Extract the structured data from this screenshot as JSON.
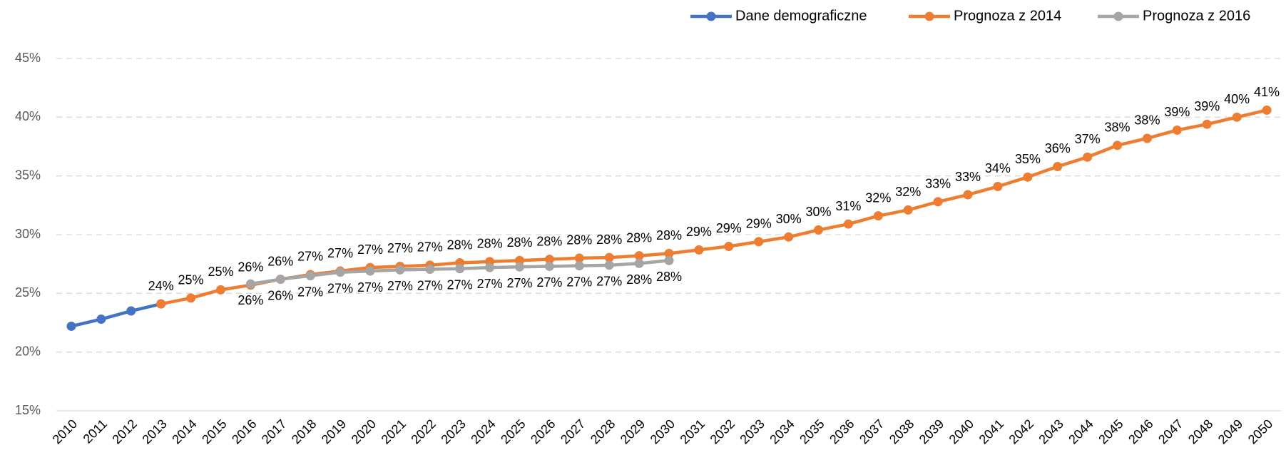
{
  "chart_data": {
    "type": "line",
    "categories": [
      "2010",
      "2011",
      "2012",
      "2013",
      "2014",
      "2015",
      "2016",
      "2017",
      "2018",
      "2019",
      "2020",
      "2021",
      "2022",
      "2023",
      "2024",
      "2025",
      "2026",
      "2027",
      "2028",
      "2029",
      "2030",
      "2031",
      "2032",
      "2033",
      "2034",
      "2035",
      "2036",
      "2037",
      "2038",
      "2039",
      "2040",
      "2041",
      "2042",
      "2043",
      "2044",
      "2045",
      "2046",
      "2047",
      "2048",
      "2049",
      "2050"
    ],
    "series": [
      {
        "name": "Dane demograficzne",
        "color": "#4472c4",
        "values": [
          22.2,
          22.8,
          23.5,
          24.1,
          null,
          null,
          null,
          null,
          null,
          null,
          null,
          null,
          null,
          null,
          null,
          null,
          null,
          null,
          null,
          null,
          null,
          null,
          null,
          null,
          null,
          null,
          null,
          null,
          null,
          null,
          null,
          null,
          null,
          null,
          null,
          null,
          null,
          null,
          null,
          null,
          null
        ]
      },
      {
        "name": "Prognoza z 2014",
        "color": "#ed7d31",
        "label_position": "above",
        "values": [
          null,
          null,
          null,
          24.1,
          24.6,
          25.3,
          25.7,
          26.2,
          26.6,
          26.9,
          27.2,
          27.3,
          27.4,
          27.6,
          27.7,
          27.8,
          27.9,
          28.0,
          28.05,
          28.2,
          28.4,
          28.7,
          29.0,
          29.4,
          29.8,
          30.4,
          30.9,
          31.6,
          32.1,
          32.8,
          33.4,
          34.1,
          34.9,
          35.8,
          36.6,
          37.6,
          38.2,
          38.9,
          39.4,
          40.0,
          40.6
        ],
        "value_labels": [
          null,
          null,
          null,
          "24%",
          "25%",
          "25%",
          "26%",
          "26%",
          "27%",
          "27%",
          "27%",
          "27%",
          "27%",
          "28%",
          "28%",
          "28%",
          "28%",
          "28%",
          "28%",
          "28%",
          "28%",
          "29%",
          "29%",
          "29%",
          "30%",
          "30%",
          "31%",
          "32%",
          "32%",
          "33%",
          "33%",
          "34%",
          "35%",
          "36%",
          "37%",
          "38%",
          "38%",
          "39%",
          "39%",
          "40%",
          "41%"
        ]
      },
      {
        "name": "Prognoza z 2016",
        "color": "#a5a5a5",
        "label_position": "below",
        "values": [
          null,
          null,
          null,
          null,
          null,
          null,
          25.8,
          26.2,
          26.5,
          26.8,
          26.9,
          27.0,
          27.05,
          27.1,
          27.2,
          27.25,
          27.3,
          27.35,
          27.4,
          27.55,
          27.8,
          null,
          null,
          null,
          null,
          null,
          null,
          null,
          null,
          null,
          null,
          null,
          null,
          null,
          null,
          null,
          null,
          null,
          null,
          null,
          null
        ],
        "value_labels": [
          null,
          null,
          null,
          null,
          null,
          null,
          "26%",
          "26%",
          "27%",
          "27%",
          "27%",
          "27%",
          "27%",
          "27%",
          "27%",
          "27%",
          "27%",
          "27%",
          "27%",
          "28%",
          "28%",
          null,
          null,
          null,
          null,
          null,
          null,
          null,
          null,
          null,
          null,
          null,
          null,
          null,
          null,
          null,
          null,
          null,
          null,
          null,
          null
        ]
      }
    ],
    "ylim": [
      15,
      45
    ],
    "yticks": [
      {
        "value": 15,
        "label": "15%"
      },
      {
        "value": 20,
        "label": "20%"
      },
      {
        "value": 25,
        "label": "25%"
      },
      {
        "value": 30,
        "label": "30%"
      },
      {
        "value": 35,
        "label": "35%"
      },
      {
        "value": 40,
        "label": "40%"
      },
      {
        "value": 45,
        "label": "45%"
      }
    ],
    "grid": true,
    "legend": "top-right"
  }
}
